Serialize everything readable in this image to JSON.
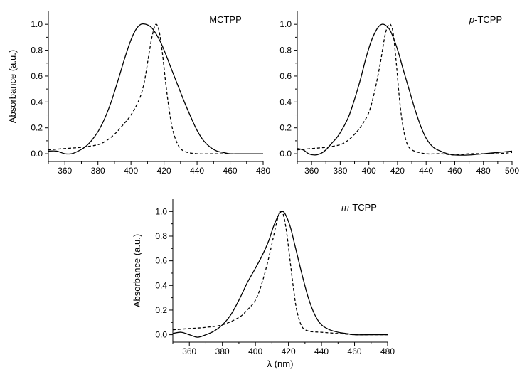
{
  "chart_data": [
    {
      "type": "line",
      "title": "MCTPP",
      "ylabel": "Absorbance (a.u.)",
      "xlabel": "",
      "xlim": [
        350,
        480
      ],
      "ylim": [
        -0.06,
        1.1
      ],
      "xticks": [
        "360",
        "380",
        "400",
        "420",
        "440",
        "460",
        "480"
      ],
      "yticks": [
        "0.0",
        "0.2",
        "0.4",
        "0.6",
        "0.8",
        "1.0"
      ],
      "series": [
        {
          "style": "solid",
          "x": [
            350,
            355,
            360,
            364,
            368,
            372,
            376,
            380,
            384,
            388,
            392,
            396,
            400,
            403,
            406,
            409,
            412,
            415,
            418,
            421,
            424,
            428,
            432,
            436,
            440,
            444,
            448,
            452,
            456,
            460,
            466,
            472,
            480
          ],
          "y": [
            0.02,
            0.02,
            0.0,
            0.0,
            0.02,
            0.05,
            0.1,
            0.17,
            0.27,
            0.4,
            0.56,
            0.73,
            0.88,
            0.96,
            1.0,
            1.0,
            0.98,
            0.93,
            0.86,
            0.77,
            0.67,
            0.54,
            0.41,
            0.29,
            0.18,
            0.1,
            0.05,
            0.02,
            0.01,
            0.0,
            0.0,
            0.0,
            0.0
          ]
        },
        {
          "style": "dashed",
          "x": [
            350,
            360,
            370,
            380,
            385,
            390,
            395,
            400,
            405,
            408,
            411,
            413,
            415,
            417,
            419,
            421,
            423,
            425,
            428,
            432,
            440,
            450,
            460,
            470,
            480
          ],
          "y": [
            0.03,
            0.04,
            0.05,
            0.07,
            0.1,
            0.15,
            0.22,
            0.3,
            0.42,
            0.55,
            0.78,
            0.92,
            1.0,
            0.95,
            0.78,
            0.55,
            0.35,
            0.2,
            0.08,
            0.02,
            0.0,
            0.0,
            0.0,
            0.0,
            0.0
          ]
        }
      ]
    },
    {
      "type": "line",
      "title": "p-TCPP",
      "title_italic": "p",
      "title_rest": "-TCPP",
      "ylabel": "",
      "xlabel": "",
      "xlim": [
        350,
        500
      ],
      "ylim": [
        -0.06,
        1.1
      ],
      "xticks": [
        "360",
        "380",
        "400",
        "420",
        "440",
        "460",
        "480",
        "500"
      ],
      "yticks": [
        "0.0",
        "0.2",
        "0.4",
        "0.6",
        "0.8",
        "1.0"
      ],
      "series": [
        {
          "style": "solid",
          "x": [
            350,
            354,
            358,
            362,
            366,
            370,
            374,
            378,
            382,
            386,
            390,
            394,
            398,
            402,
            406,
            409,
            412,
            415,
            418,
            421,
            424,
            428,
            432,
            436,
            440,
            445,
            450,
            455,
            460,
            470,
            480,
            490,
            500
          ],
          "y": [
            0.04,
            0.03,
            0.0,
            -0.01,
            0.0,
            0.03,
            0.08,
            0.13,
            0.2,
            0.29,
            0.42,
            0.57,
            0.74,
            0.88,
            0.97,
            1.0,
            0.99,
            0.95,
            0.87,
            0.77,
            0.65,
            0.5,
            0.35,
            0.22,
            0.12,
            0.05,
            0.02,
            0.0,
            -0.01,
            -0.01,
            0.0,
            0.01,
            0.02
          ]
        },
        {
          "style": "dashed",
          "x": [
            350,
            360,
            370,
            380,
            385,
            390,
            395,
            400,
            404,
            408,
            411,
            413,
            415,
            417,
            419,
            421,
            423,
            426,
            430,
            440,
            450,
            460,
            470,
            480,
            490,
            500
          ],
          "y": [
            0.03,
            0.04,
            0.05,
            0.07,
            0.1,
            0.15,
            0.22,
            0.32,
            0.48,
            0.7,
            0.9,
            0.98,
            1.0,
            0.93,
            0.72,
            0.47,
            0.27,
            0.1,
            0.03,
            0.0,
            0.0,
            -0.01,
            0.0,
            0.0,
            0.0,
            0.01
          ]
        }
      ]
    },
    {
      "type": "line",
      "title": "m-TCPP",
      "title_italic": "m",
      "title_rest": "-TCPP",
      "ylabel": "Absorbance (a.u.)",
      "xlabel": "λ (nm)",
      "xlim": [
        350,
        480
      ],
      "ylim": [
        -0.06,
        1.1
      ],
      "xticks": [
        "360",
        "380",
        "400",
        "420",
        "440",
        "460",
        "480"
      ],
      "yticks": [
        "0.0",
        "0.2",
        "0.4",
        "0.6",
        "0.8",
        "1.0"
      ],
      "series": [
        {
          "style": "solid",
          "x": [
            350,
            355,
            360,
            365,
            370,
            375,
            380,
            385,
            390,
            395,
            400,
            404,
            408,
            411,
            414,
            416,
            418,
            421,
            424,
            428,
            432,
            436,
            440,
            445,
            450,
            455,
            460,
            470,
            480
          ],
          "y": [
            0.01,
            0.02,
            0.0,
            -0.02,
            0.0,
            0.03,
            0.08,
            0.16,
            0.28,
            0.42,
            0.54,
            0.64,
            0.76,
            0.88,
            0.97,
            1.0,
            0.98,
            0.88,
            0.72,
            0.5,
            0.3,
            0.16,
            0.08,
            0.04,
            0.02,
            0.01,
            0.0,
            0.0,
            0.0
          ]
        },
        {
          "style": "dashed",
          "x": [
            350,
            360,
            370,
            380,
            390,
            395,
            400,
            404,
            408,
            411,
            413,
            415,
            417,
            419,
            421,
            423,
            425,
            428,
            432,
            440,
            450,
            460,
            470,
            480
          ],
          "y": [
            0.04,
            0.05,
            0.06,
            0.08,
            0.14,
            0.2,
            0.28,
            0.42,
            0.62,
            0.8,
            0.92,
            1.0,
            0.97,
            0.82,
            0.6,
            0.38,
            0.2,
            0.07,
            0.03,
            0.02,
            0.01,
            0.0,
            0.0,
            0.0
          ]
        }
      ]
    }
  ]
}
